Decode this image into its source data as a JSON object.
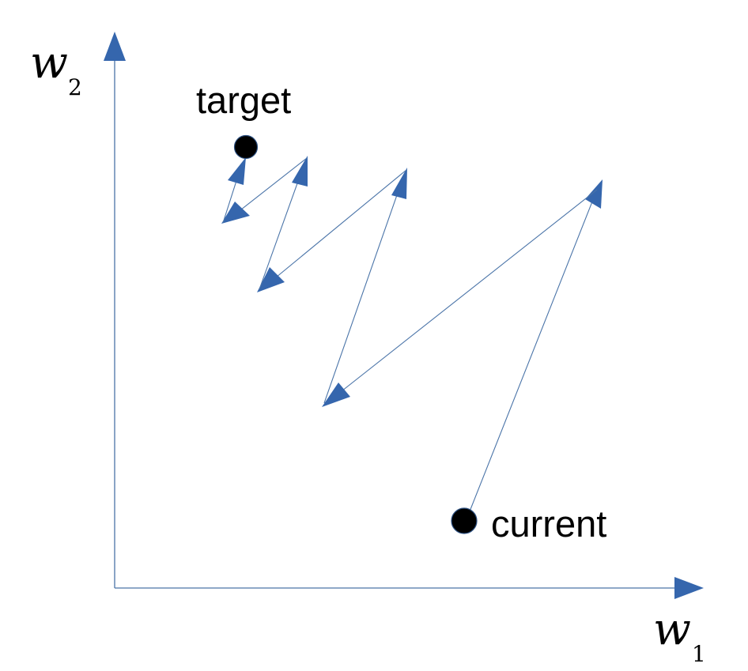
{
  "axes": {
    "x": {
      "variable": "w",
      "subscript": "1"
    },
    "y": {
      "variable": "w",
      "subscript": "2"
    }
  },
  "points": {
    "target": {
      "label": "target"
    },
    "current": {
      "label": "current"
    }
  },
  "colors": {
    "line": "#4a74a8",
    "arrowhead": "#3566ad",
    "point": "#000000"
  }
}
